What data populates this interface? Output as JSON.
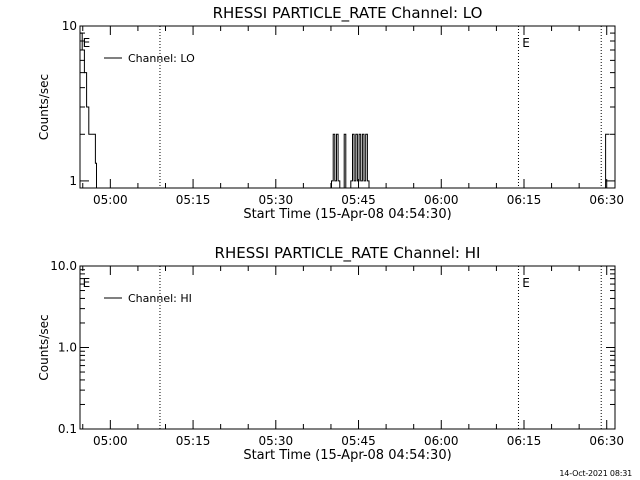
{
  "footer_timestamp": "14-Oct-2021 08:31",
  "chart_data": [
    {
      "type": "line",
      "title": "RHESSI PARTICLE_RATE Channel: LO",
      "xlabel": "Start Time (15-Apr-08 04:54:30)",
      "ylabel": "Counts/sec",
      "y_scale": "log",
      "xlim_minutes": [
        0,
        97
      ],
      "ylim": [
        0.9,
        10
      ],
      "yticks": [
        {
          "v": 1,
          "label": "1"
        },
        {
          "v": 10,
          "label": "10"
        }
      ],
      "xticks": [
        {
          "m": 5.5,
          "label": "05:00"
        },
        {
          "m": 20.5,
          "label": "05:15"
        },
        {
          "m": 35.5,
          "label": "05:30"
        },
        {
          "m": 50.5,
          "label": "05:45"
        },
        {
          "m": 65.5,
          "label": "06:00"
        },
        {
          "m": 80.5,
          "label": "06:15"
        },
        {
          "m": 95.5,
          "label": "06:30"
        }
      ],
      "series": [
        {
          "name": "Channel: LO",
          "points": [
            [
              0,
              9
            ],
            [
              0.4,
              7
            ],
            [
              0.8,
              5
            ],
            [
              1.2,
              3
            ],
            [
              1.6,
              2
            ],
            [
              2.4,
              2
            ],
            [
              2.8,
              1.3
            ],
            [
              3.0,
              0.9
            ],
            [
              82.5,
              0.9
            ],
            [
              83.2,
              0.9
            ],
            [
              45.3,
              0.9
            ],
            [
              45.6,
              1.0
            ],
            [
              45.9,
              2.0
            ],
            [
              46.2,
              1.0
            ],
            [
              46.5,
              2.0
            ],
            [
              46.8,
              1.0
            ],
            [
              47.1,
              0.9
            ],
            [
              47.6,
              0.9
            ],
            [
              47.9,
              2.0
            ],
            [
              48.2,
              0.9
            ],
            [
              48.8,
              0.9
            ],
            [
              49.1,
              1.0
            ],
            [
              49.4,
              2.0
            ],
            [
              49.7,
              1.0
            ],
            [
              50.0,
              2.0
            ],
            [
              50.3,
              1.0
            ],
            [
              50.6,
              2.0
            ],
            [
              50.9,
              1.0
            ],
            [
              51.2,
              2.0
            ],
            [
              51.5,
              1.0
            ],
            [
              51.8,
              2.0
            ],
            [
              52.1,
              1.0
            ],
            [
              52.4,
              0.9
            ],
            [
              95.0,
              0.9
            ],
            [
              95.3,
              2.0
            ],
            [
              96.0,
              2.0
            ]
          ]
        }
      ],
      "vlines_minutes": [
        14.5,
        79.5,
        94.5
      ],
      "event_markers": [
        {
          "m": 0.3,
          "label": "E"
        },
        {
          "m": 80.0,
          "label": "E"
        }
      ],
      "legend": "upper-left"
    },
    {
      "type": "line",
      "title": "RHESSI PARTICLE_RATE Channel: HI",
      "xlabel": "Start Time (15-Apr-08 04:54:30)",
      "ylabel": "Counts/sec",
      "y_scale": "log",
      "xlim_minutes": [
        0,
        97
      ],
      "ylim": [
        0.1,
        10
      ],
      "yticks": [
        {
          "v": 0.1,
          "label": "0.1"
        },
        {
          "v": 1,
          "label": "1.0"
        },
        {
          "v": 10,
          "label": "10.0"
        }
      ],
      "xticks": [
        {
          "m": 5.5,
          "label": "05:00"
        },
        {
          "m": 20.5,
          "label": "05:15"
        },
        {
          "m": 35.5,
          "label": "05:30"
        },
        {
          "m": 50.5,
          "label": "05:45"
        },
        {
          "m": 65.5,
          "label": "06:00"
        },
        {
          "m": 80.5,
          "label": "06:15"
        },
        {
          "m": 95.5,
          "label": "06:30"
        }
      ],
      "series": [
        {
          "name": "Channel: HI",
          "points": []
        }
      ],
      "vlines_minutes": [
        14.5,
        79.5,
        94.5
      ],
      "event_markers": [
        {
          "m": 0.3,
          "label": "E"
        },
        {
          "m": 80.0,
          "label": "E"
        }
      ],
      "legend": "upper-left"
    }
  ]
}
